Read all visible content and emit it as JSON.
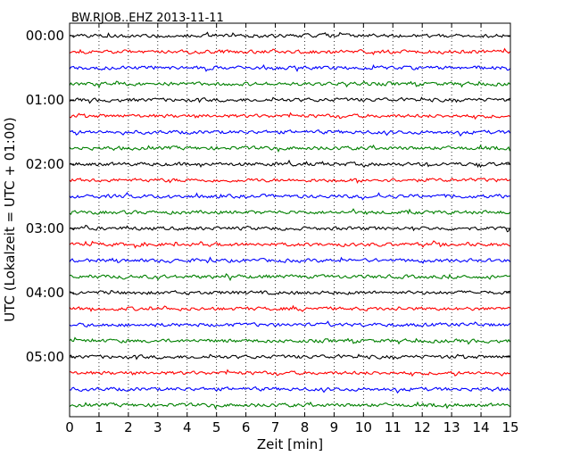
{
  "chart_data": {
    "type": "line",
    "title": "BW.RJOB..EHZ 2013-11-11",
    "xlabel": "Zeit  [min]",
    "ylabel": "UTC (Lokalzeit = UTC + 01:00)",
    "xlim": [
      0,
      15
    ],
    "x_ticks": [
      "0",
      "1",
      "2",
      "3",
      "4",
      "5",
      "6",
      "7",
      "8",
      "9",
      "10",
      "11",
      "12",
      "13",
      "14",
      "15"
    ],
    "y_ticks": [
      "00:00",
      "01:00",
      "02:00",
      "03:00",
      "04:00",
      "05:00"
    ],
    "trace_minutes": 15,
    "traces_per_hour": 4,
    "trace_count": 24,
    "color_cycle": [
      "#000000",
      "#ff0000",
      "#0000ff",
      "#008000"
    ],
    "grid": "vertical-dotted"
  }
}
